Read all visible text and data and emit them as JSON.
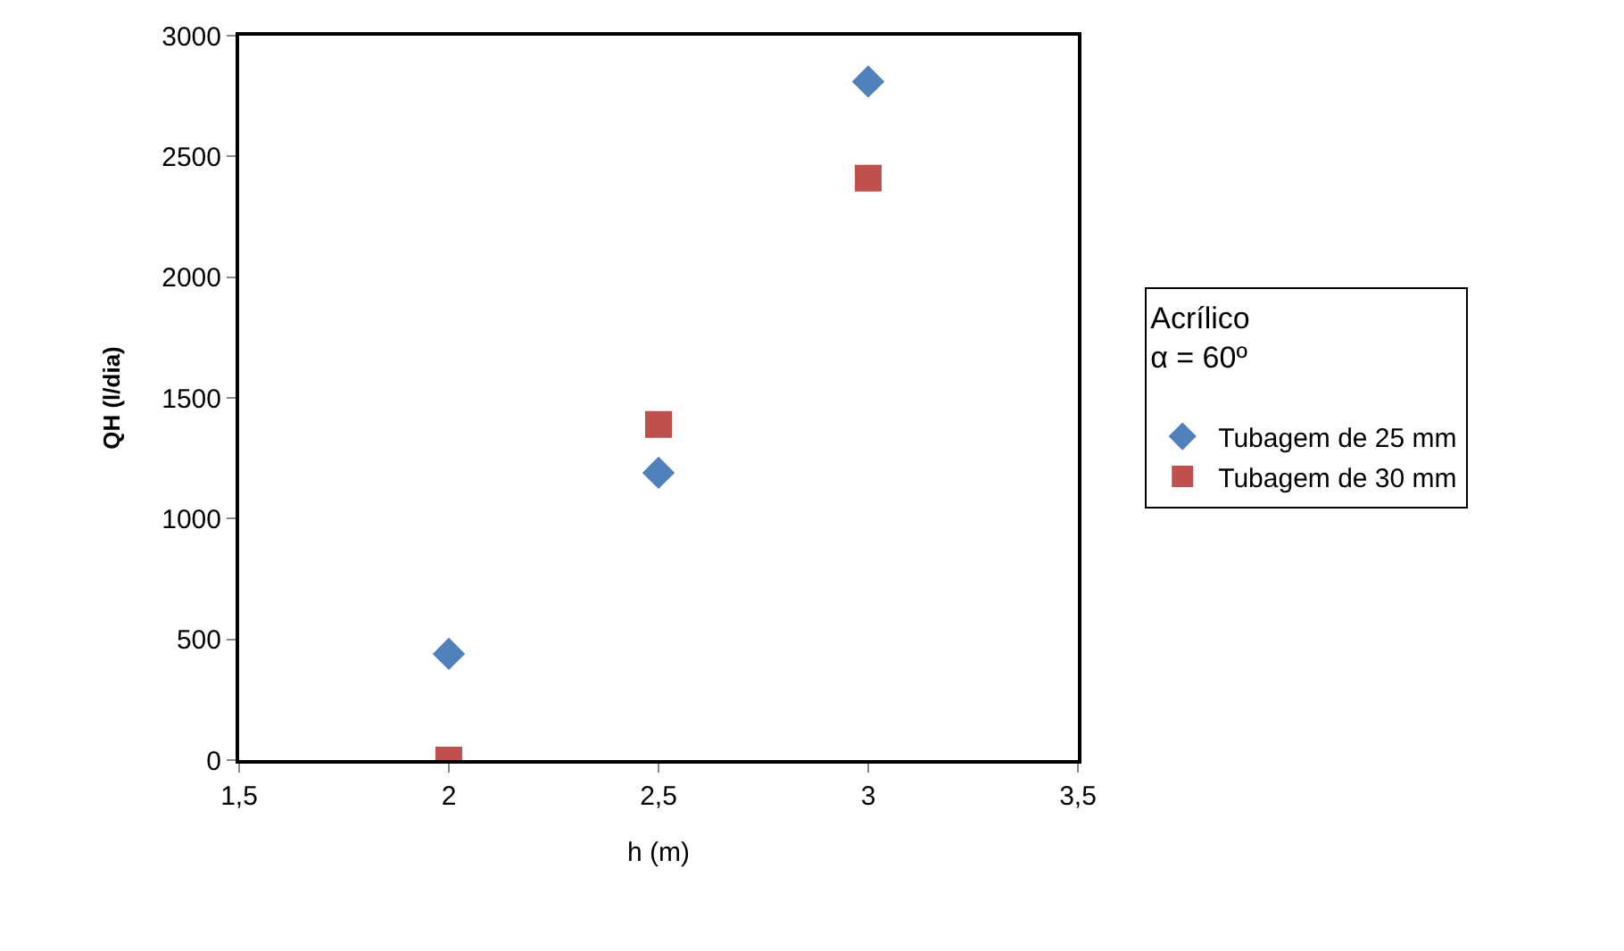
{
  "chart_data": {
    "type": "scatter",
    "xlabel": "h (m)",
    "ylabel": "QH (l/dia)",
    "legend_title": "Acrílico\nα = 60º",
    "legend": "right",
    "x": [
      2,
      2.5,
      3
    ],
    "series": [
      {
        "name": "Tubagem de 25 mm",
        "color": "#4f81bd",
        "marker": "diamond",
        "values": [
          440,
          1190,
          2810
        ]
      },
      {
        "name": "Tubagem de 30 mm",
        "color": "#c0504d",
        "marker": "square",
        "values": [
          0,
          1390,
          2410
        ]
      }
    ],
    "xlim": [
      1.5,
      3.5
    ],
    "xticks": [
      {
        "value": 1.5,
        "label": "1,5"
      },
      2,
      {
        "value": 2.5,
        "label": "2,5"
      },
      3,
      {
        "value": 3.5,
        "label": "3,5"
      }
    ],
    "ylim": [
      0,
      3000
    ],
    "yticks": [
      0,
      500,
      1000,
      1500,
      2000,
      2500,
      3000
    ],
    "grid": false
  }
}
